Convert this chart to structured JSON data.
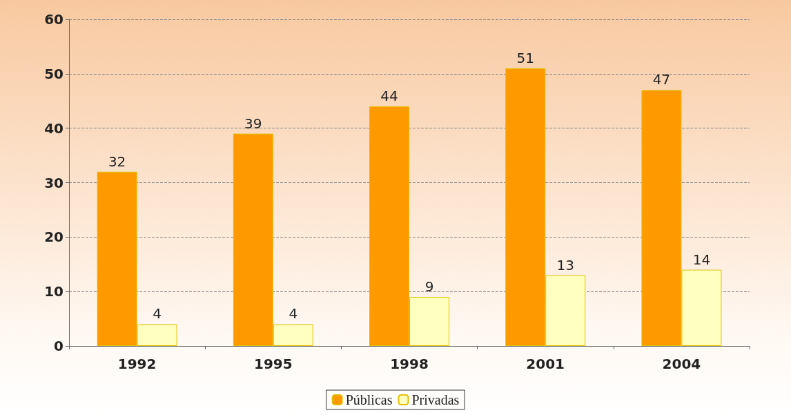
{
  "chart_data": {
    "type": "bar",
    "categories": [
      "1992",
      "1995",
      "1998",
      "2001",
      "2004"
    ],
    "series": [
      {
        "name": "Públicas",
        "color": "#ff9900",
        "values": [
          32,
          39,
          44,
          51,
          47
        ]
      },
      {
        "name": "Privadas",
        "color": "#ffffc0",
        "values": [
          4,
          4,
          9,
          13,
          14
        ]
      }
    ],
    "ylim": [
      0,
      60
    ],
    "yticks": [
      0,
      10,
      20,
      30,
      40,
      50,
      60
    ],
    "grid": "y",
    "legend": "bottom",
    "data_labels": true
  }
}
